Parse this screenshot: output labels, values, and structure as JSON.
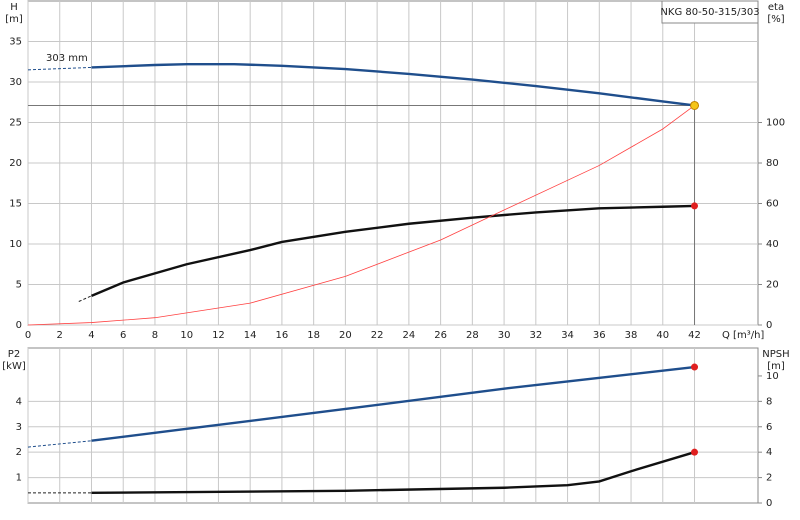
{
  "chart_data": [
    {
      "type": "line",
      "title": "NKG 80-50-315/303",
      "annotation": "303 mm",
      "y_label": [
        "H",
        "[m]"
      ],
      "y2_label": [
        "eta",
        "[%]"
      ],
      "x_label": "Q [m³/h]",
      "xlim": [
        0,
        46
      ],
      "xticks": [
        0,
        2,
        4,
        6,
        8,
        10,
        12,
        14,
        16,
        18,
        20,
        22,
        24,
        26,
        28,
        30,
        32,
        34,
        36,
        38,
        40,
        42
      ],
      "ylim": [
        0,
        40
      ],
      "yticks": [
        0,
        5,
        10,
        15,
        20,
        25,
        30,
        35
      ],
      "y2lim": [
        0,
        160
      ],
      "y2ticks": [
        0,
        20,
        40,
        60,
        80,
        100
      ],
      "grid": true,
      "operating_point": {
        "x": 42,
        "y": 27.1,
        "color": "#f5c518"
      },
      "series": [
        {
          "color": "#1f4e8c",
          "dash": true,
          "x": [
            0,
            4
          ],
          "values": [
            31.5,
            31.8
          ]
        },
        {
          "color": "#1f4e8c",
          "x": [
            4,
            8,
            10,
            13,
            16,
            20,
            24,
            28,
            32,
            36,
            40,
            42
          ],
          "values": [
            31.8,
            32.1,
            32.2,
            32.2,
            32,
            31.6,
            31,
            30.3,
            29.5,
            28.6,
            27.6,
            27.1
          ]
        },
        {
          "color": "#222222",
          "dash": true,
          "axis": "y2",
          "x": [
            3.2,
            4
          ],
          "values": [
            11.6,
            14.4
          ]
        },
        {
          "color": "#111111",
          "axis": "y2",
          "end_marker": "#e02020",
          "x": [
            4,
            6,
            10,
            14,
            16,
            20,
            24,
            28,
            32,
            36,
            40,
            42
          ],
          "values": [
            14.4,
            21,
            30,
            37,
            41,
            46,
            50,
            53,
            55.6,
            57.6,
            58.4,
            58.8
          ]
        },
        {
          "color": "#ff4040",
          "thin": true,
          "x": [
            0,
            4,
            8,
            14,
            20,
            26,
            30,
            36,
            40,
            42
          ],
          "values": [
            0,
            0.3,
            0.9,
            2.7,
            6,
            10.5,
            14.2,
            19.7,
            24.2,
            27.1
          ]
        }
      ]
    },
    {
      "type": "line",
      "y_label": [
        "P2",
        "[kW]"
      ],
      "y2_label": [
        "NPSH",
        "[m]"
      ],
      "xlim": [
        0,
        46
      ],
      "xticks": [
        0,
        2,
        4,
        6,
        8,
        10,
        12,
        14,
        16,
        18,
        20,
        22,
        24,
        26,
        28,
        30,
        32,
        34,
        36,
        38,
        40,
        42
      ],
      "ylim": [
        0,
        6.1
      ],
      "yticks": [
        1,
        2,
        3,
        4
      ],
      "y2lim": [
        0,
        12.2
      ],
      "y2ticks": [
        0,
        2,
        4,
        6,
        8,
        10
      ],
      "grid": true,
      "series": [
        {
          "color": "#1f4e8c",
          "dash": true,
          "x": [
            0,
            4
          ],
          "values": [
            2.2,
            2.45
          ]
        },
        {
          "color": "#1f4e8c",
          "end_marker": "#e02020",
          "x": [
            4,
            10,
            20,
            30,
            42
          ],
          "values": [
            2.45,
            2.92,
            3.7,
            4.5,
            5.35
          ]
        },
        {
          "color": "#222222",
          "dash": true,
          "axis": "y2",
          "x": [
            0,
            4
          ],
          "values": [
            0.8,
            0.8
          ]
        },
        {
          "color": "#111111",
          "axis": "y2",
          "end_marker": "#e02020",
          "x": [
            4,
            20,
            30,
            34,
            36,
            38,
            42
          ],
          "values": [
            0.8,
            0.96,
            1.2,
            1.4,
            1.7,
            2.5,
            4.0
          ]
        }
      ]
    }
  ]
}
